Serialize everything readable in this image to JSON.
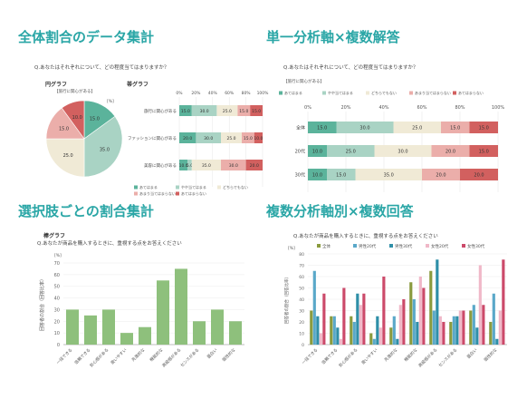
{
  "titles": {
    "s1": "全体割合のデータ集計",
    "s2": "単一分析軸×複数解答",
    "s3": "選択肢ごとの割合集計",
    "s4": "複数分析軸別×複数回答"
  },
  "questions": {
    "q1": "Q.あなたはそれぞれについて、どの程度当てはまりますか？",
    "q2": "Q.あなたはそれぞれについて、どの程度当てはまりますか？",
    "q3": "Q.あなたが商品を購入するときに、重視する点をお答えください",
    "q4": "Q.あなたが商品を購入するときに、重視する点をお答えください"
  },
  "labels": {
    "pie_title": "円グラフ",
    "pie_sub": "【旅行に関心がある】",
    "pie_unit": "[%]",
    "band_title": "帯グラフ",
    "bar_title": "棒グラフ",
    "bar_unit": "[%]",
    "bar_ylabel": "回答者の割合（回答比率）",
    "s2_sub": "【旅行に関心がある】",
    "s4_unit": "[%]",
    "s4_ylabel": "回答者の割合（回答比率）"
  },
  "colors": {
    "c1": "#5bb39b",
    "c2": "#a9d3c4",
    "c3": "#f0ead6",
    "c4": "#ebaeaa",
    "c5": "#d2605f",
    "bar": "#8ec07c",
    "title": "#2aa6a6"
  },
  "chart_data": [
    {
      "type": "pie",
      "categories": [
        "あてはまる",
        "やや当てはまる",
        "どちらでもない",
        "あまり当てはまらない",
        "あてはまらない"
      ],
      "values": [
        15.0,
        35.0,
        25.0,
        15.0,
        10.0
      ],
      "labels": [
        "15.0",
        "35.0",
        "25.0",
        "15.0",
        "10.0"
      ]
    },
    {
      "type": "bar",
      "orientation": "horizontal-stacked",
      "categories": [
        "旅行に関心がある",
        "ファッションに関心がある",
        "美容に関心がある"
      ],
      "series": [
        {
          "name": "あてはまる",
          "values": [
            15.0,
            20.0,
            10.0
          ]
        },
        {
          "name": "やや当てはまる",
          "values": [
            30.0,
            30.0,
            5.0
          ]
        },
        {
          "name": "どちらでもない",
          "values": [
            25.0,
            25.0,
            35.0
          ]
        },
        {
          "name": "あまり当てはまらない",
          "values": [
            15.0,
            15.0,
            30.0
          ]
        },
        {
          "name": "あてはまらない",
          "values": [
            15.0,
            10.0,
            20.0
          ]
        }
      ],
      "labels": [
        [
          "15.0",
          "30.0",
          "25.0",
          "15.0",
          "15.0"
        ],
        [
          "20.0",
          "30.0",
          "25.0",
          "15.0",
          "10.0"
        ],
        [
          "10.0",
          "5.0",
          "35.0",
          "30.0",
          "20.0"
        ]
      ],
      "ticks": [
        "0%",
        "20%",
        "40%",
        "60%",
        "80%",
        "100%"
      ]
    },
    {
      "type": "bar",
      "orientation": "horizontal-stacked",
      "categories": [
        "全体",
        "20代",
        "30代"
      ],
      "series": [
        {
          "name": "あてはまる",
          "values": [
            15.0,
            10.0,
            10.0
          ]
        },
        {
          "name": "やや当てはまる",
          "values": [
            30.0,
            25.0,
            15.0
          ]
        },
        {
          "name": "どちらでもない",
          "values": [
            25.0,
            30.0,
            35.0
          ]
        },
        {
          "name": "あまり当てはまらない",
          "values": [
            15.0,
            20.0,
            20.0
          ]
        },
        {
          "name": "あてはまらない",
          "values": [
            15.0,
            15.0,
            20.0
          ]
        }
      ],
      "labels": [
        [
          "15.0",
          "30.0",
          "25.0",
          "15.0",
          "15.0"
        ],
        [
          "10.0",
          "25.0",
          "30.0",
          "20.0",
          "15.0"
        ],
        [
          "10.0",
          "15.0",
          "35.0",
          "20.0",
          "20.0"
        ]
      ],
      "ticks": [
        "0%",
        "20%",
        "40%",
        "60%",
        "80%",
        "100%"
      ]
    },
    {
      "type": "bar",
      "categories": [
        "一括できる",
        "信頼できる",
        "安心感がある",
        "扱いやすい",
        "先進的な",
        "機能的な",
        "高級感がある",
        "センスがある",
        "面白い",
        "個性的な"
      ],
      "values": [
        30,
        25,
        30,
        10,
        15,
        55,
        65,
        20,
        30,
        20
      ],
      "ylim": [
        0,
        70
      ],
      "yticks": [
        0,
        10,
        20,
        30,
        40,
        50,
        60,
        70
      ]
    },
    {
      "type": "bar",
      "orientation": "grouped",
      "categories": [
        "一括できる",
        "信頼できる",
        "安心感がある",
        "扱いやすい",
        "先進的な",
        "機能的な",
        "高級感がある",
        "センスがある",
        "面白い",
        "個性的な"
      ],
      "series": [
        {
          "name": "全体",
          "values": [
            30,
            25,
            25,
            10,
            15,
            55,
            65,
            20,
            30,
            20
          ]
        },
        {
          "name": "男性20代",
          "values": [
            65,
            25,
            20,
            5,
            25,
            40,
            30,
            25,
            35,
            45
          ]
        },
        {
          "name": "男性30代",
          "values": [
            25,
            15,
            45,
            25,
            5,
            20,
            75,
            25,
            15,
            5
          ]
        },
        {
          "name": "女性20代",
          "values": [
            10,
            5,
            35,
            15,
            35,
            60,
            25,
            30,
            70,
            30
          ]
        },
        {
          "name": "女性30代",
          "values": [
            45,
            50,
            45,
            60,
            40,
            50,
            20,
            30,
            35,
            75
          ]
        }
      ],
      "ylim": [
        0,
        80
      ],
      "yticks": [
        0,
        10,
        20,
        30,
        40,
        50,
        60,
        70,
        80
      ]
    }
  ]
}
